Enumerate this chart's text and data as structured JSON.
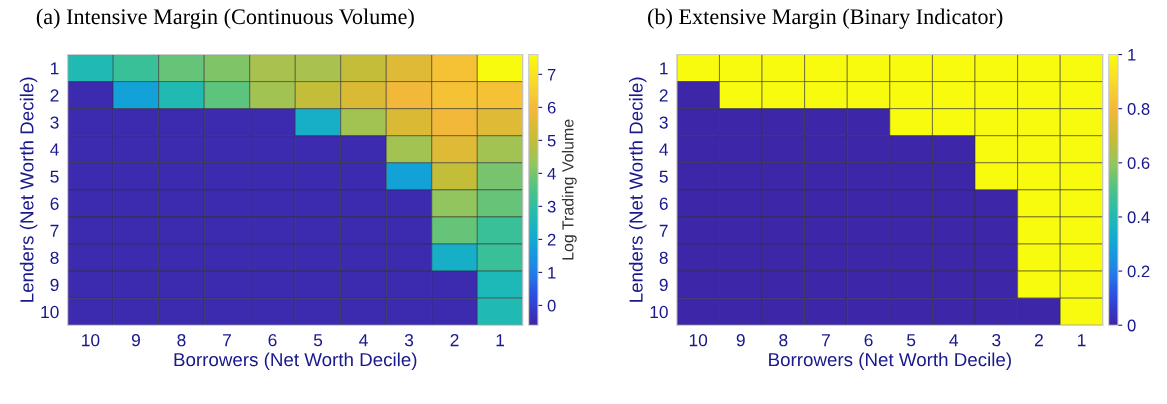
{
  "chart_data": [
    {
      "type": "heatmap",
      "title": "(a) Intensive Margin (Continuous Volume)",
      "xlabel": "Borrowers (Net Worth Decile)",
      "ylabel": "Lenders (Net Worth Decile)",
      "clabel": "Log Trading Volume",
      "categories": [
        "10",
        "9",
        "8",
        "7",
        "6",
        "5",
        "4",
        "3",
        "2",
        "1"
      ],
      "y_categories": [
        "1",
        "2",
        "3",
        "4",
        "5",
        "6",
        "7",
        "8",
        "9",
        "10"
      ],
      "cells": [
        [
          2.7,
          3.2,
          3.8,
          4.1,
          4.6,
          4.6,
          5.0,
          5.5,
          6.2,
          7.6
        ],
        [
          -0.5,
          1.8,
          2.7,
          3.7,
          4.5,
          5.0,
          5.4,
          5.9,
          6.2,
          6.2
        ],
        [
          -0.5,
          -0.5,
          -0.5,
          -0.5,
          -0.5,
          2.2,
          4.5,
          5.4,
          5.9,
          5.5
        ],
        [
          -0.5,
          -0.5,
          -0.5,
          -0.5,
          -0.5,
          -0.5,
          -0.5,
          4.5,
          5.5,
          4.5
        ],
        [
          -0.5,
          -0.5,
          -0.5,
          -0.5,
          -0.5,
          -0.5,
          -0.5,
          1.8,
          5.0,
          4.0
        ],
        [
          -0.5,
          -0.5,
          -0.5,
          -0.5,
          -0.5,
          -0.5,
          -0.5,
          -0.5,
          4.3,
          3.8
        ],
        [
          -0.5,
          -0.5,
          -0.5,
          -0.5,
          -0.5,
          -0.5,
          -0.5,
          -0.5,
          3.8,
          3.2
        ],
        [
          -0.5,
          -0.5,
          -0.5,
          -0.5,
          -0.5,
          -0.5,
          -0.5,
          -0.5,
          2.2,
          3.2
        ],
        [
          -0.5,
          -0.5,
          -0.5,
          -0.5,
          -0.5,
          -0.5,
          -0.5,
          -0.5,
          -0.5,
          2.6
        ],
        [
          -0.5,
          -0.5,
          -0.5,
          -0.5,
          -0.5,
          -0.5,
          -0.5,
          -0.5,
          -0.5,
          2.7
        ]
      ],
      "clim": [
        -0.6,
        7.6
      ],
      "cticks": [
        0,
        1,
        2,
        3,
        4,
        5,
        6,
        7
      ]
    },
    {
      "type": "heatmap",
      "title": "(b) Extensive Margin (Binary Indicator)",
      "xlabel": "Borrowers (Net Worth Decile)",
      "ylabel": "Lenders (Net Worth Decile)",
      "categories": [
        "10",
        "9",
        "8",
        "7",
        "6",
        "5",
        "4",
        "3",
        "2",
        "1"
      ],
      "y_categories": [
        "1",
        "2",
        "3",
        "4",
        "5",
        "6",
        "7",
        "8",
        "9",
        "10"
      ],
      "cells": [
        [
          1,
          1,
          1,
          1,
          1,
          1,
          1,
          1,
          1,
          1
        ],
        [
          0,
          1,
          1,
          1,
          1,
          1,
          1,
          1,
          1,
          1
        ],
        [
          0,
          0,
          0,
          0,
          0,
          1,
          1,
          1,
          1,
          1
        ],
        [
          0,
          0,
          0,
          0,
          0,
          0,
          0,
          1,
          1,
          1
        ],
        [
          0,
          0,
          0,
          0,
          0,
          0,
          0,
          1,
          1,
          1
        ],
        [
          0,
          0,
          0,
          0,
          0,
          0,
          0,
          0,
          1,
          1
        ],
        [
          0,
          0,
          0,
          0,
          0,
          0,
          0,
          0,
          1,
          1
        ],
        [
          0,
          0,
          0,
          0,
          0,
          0,
          0,
          0,
          1,
          1
        ],
        [
          0,
          0,
          0,
          0,
          0,
          0,
          0,
          0,
          1,
          1
        ],
        [
          0,
          0,
          0,
          0,
          0,
          0,
          0,
          0,
          0,
          1
        ]
      ],
      "clim": [
        0,
        1
      ],
      "cticks": [
        0,
        0.2,
        0.4,
        0.6,
        0.8,
        1
      ]
    }
  ]
}
